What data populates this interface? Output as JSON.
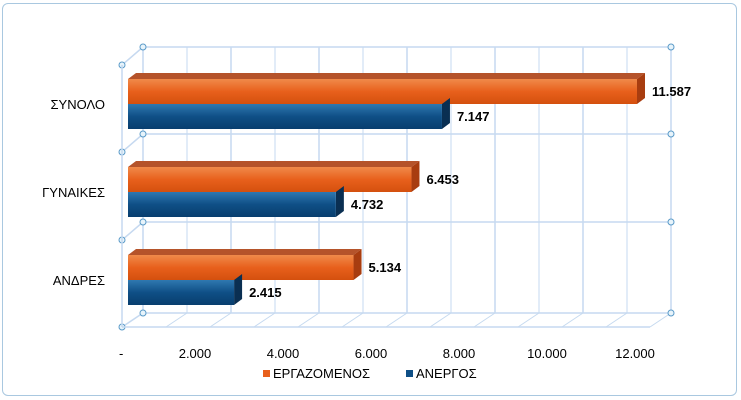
{
  "chart_data": {
    "type": "bar",
    "orientation": "horizontal",
    "style": "3d",
    "categories": [
      "ΣΥΝΟΛΟ",
      "ΓΥΝΑΙΚΕΣ",
      "ΑΝΔΡΕΣ"
    ],
    "series": [
      {
        "name": "ΕΡΓΑΖΟΜΕΝΟΣ",
        "values": [
          11587,
          6453,
          5134
        ],
        "labels": [
          "11.587",
          "6.453",
          "5.134"
        ],
        "color": "#e8601c"
      },
      {
        "name": "ΑΝΕΡΓΟΣ",
        "values": [
          7147,
          4732,
          2415
        ],
        "labels": [
          "7.147",
          "4.732",
          "2.415"
        ],
        "color": "#0f4f86"
      }
    ],
    "xlim": [
      0,
      12000
    ],
    "xticks": [
      0,
      2000,
      4000,
      6000,
      8000,
      10000,
      12000
    ],
    "xtick_labels": [
      "-",
      "2.000",
      "4.000",
      "6.000",
      "8.000",
      "10.000",
      "12.000"
    ],
    "grid": true,
    "legend": "bottom"
  }
}
